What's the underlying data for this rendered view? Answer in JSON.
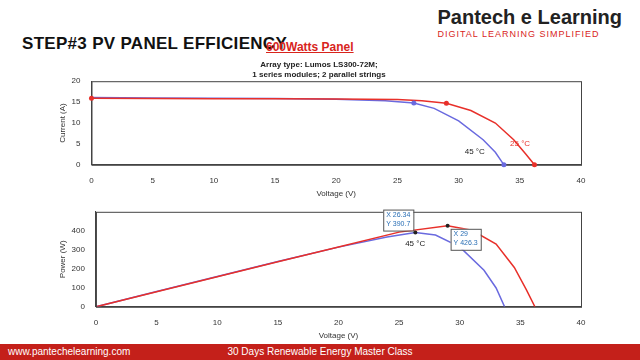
{
  "header": {
    "title": "STEP#3 PV PANEL EFFICIENCY",
    "subtitle": "600Watts Panel",
    "logo": "Pantech e Learning",
    "tagline": "DIGITAL LEARNING SIMPLIFIED"
  },
  "footer": {
    "website": "www.pantechelearning.com",
    "course": "30 Days Renewable Energy Master Class"
  },
  "chart_data": [
    {
      "type": "line",
      "title": "Array type: Lumos LS300-72M;",
      "subtitle": "1 series modules; 2 parallel strings",
      "x_label": "Voltage (V)",
      "y_label": "Current (A)",
      "xlim": [
        0,
        40
      ],
      "xticks": [
        0,
        5,
        10,
        15,
        20,
        25,
        30,
        35,
        40
      ],
      "ylim": [
        0,
        20
      ],
      "yticks": [
        0,
        5,
        10,
        15,
        20
      ],
      "grid": false,
      "series": [
        {
          "color": "#e8302a",
          "x": [
            0,
            5,
            10,
            15,
            20,
            25,
            27,
            29,
            31,
            33,
            34.5,
            35.5,
            36.2
          ],
          "values": [
            15.9,
            15.85,
            15.8,
            15.8,
            15.75,
            15.6,
            15.3,
            14.7,
            13,
            10,
            6,
            2.5,
            0
          ]
        },
        {
          "color": "#6a6adf",
          "x": [
            0,
            5,
            10,
            15,
            20,
            24,
            26.34,
            28,
            30,
            32,
            33,
            33.7
          ],
          "values": [
            16.1,
            16,
            15.9,
            15.85,
            15.7,
            15.3,
            14.8,
            13.5,
            10.5,
            6,
            3,
            0
          ]
        }
      ],
      "markers": [
        {
          "x": 0,
          "y": 15.9,
          "color": "#e8302a"
        },
        {
          "x": 29,
          "y": 14.7,
          "color": "#e8302a"
        },
        {
          "x": 36.2,
          "y": 0,
          "color": "#e8302a"
        },
        {
          "x": 26.34,
          "y": 14.8,
          "color": "#6a6adf"
        },
        {
          "x": 33.7,
          "y": 0,
          "color": "#6a6adf"
        }
      ],
      "annotations": [
        {
          "text": "25 °C",
          "x": 34.2,
          "y": 5,
          "color": "#e8302a"
        },
        {
          "text": "45 °C",
          "x": 30.5,
          "y": 3,
          "color": "#222222"
        }
      ]
    },
    {
      "type": "line",
      "x_label": "Voltage (V)",
      "y_label": "Power (W)",
      "xlim": [
        0,
        40
      ],
      "xticks": [
        0,
        5,
        10,
        15,
        20,
        25,
        30,
        35,
        40
      ],
      "ylim": [
        0,
        500
      ],
      "yticks": [
        0,
        100,
        200,
        300,
        400
      ],
      "grid": false,
      "series": [
        {
          "color": "#e8302a",
          "x": [
            0,
            5,
            10,
            15,
            20,
            25,
            29,
            31,
            33,
            34.5,
            35.5,
            36.2
          ],
          "values": [
            0,
            79,
            158,
            237,
            315,
            393,
            426.3,
            403,
            330,
            207,
            89,
            0
          ]
        },
        {
          "color": "#6a6adf",
          "x": [
            0,
            5,
            10,
            15,
            20,
            24,
            26.34,
            28,
            30,
            32,
            33,
            33.7
          ],
          "values": [
            0,
            80,
            159,
            238,
            314,
            367,
            390.7,
            378,
            315,
            192,
            99,
            0
          ]
        }
      ],
      "datatips": [
        {
          "x": 26.34,
          "y": 390.7,
          "label": [
            "X 26.34",
            "Y 390.7"
          ]
        },
        {
          "x": 29,
          "y": 426.3,
          "label": [
            "X 29",
            "Y 426.3"
          ]
        }
      ],
      "annotations": [
        {
          "text": "45 °C",
          "x": 25.5,
          "y": 330,
          "color": "#222222"
        }
      ]
    }
  ]
}
